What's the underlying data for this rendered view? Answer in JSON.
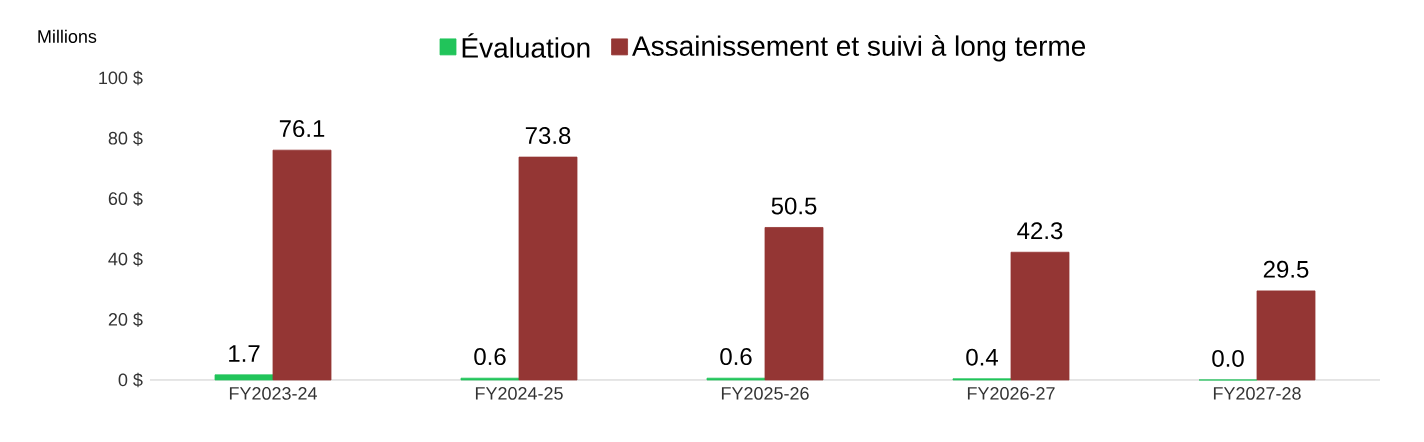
{
  "chart_data": {
    "type": "bar",
    "ylabel": "Millions",
    "categories": [
      "FY2023-24",
      "FY2024-25",
      "FY2025-26",
      "FY2026-27",
      "FY2027-28"
    ],
    "series": [
      {
        "name": "Évaluation",
        "color": "#21c45a",
        "values": [
          1.7,
          0.6,
          0.6,
          0.4,
          0.0
        ],
        "value_labels": [
          "1.7",
          "0.6",
          "0.6",
          "0.4",
          "0.0"
        ]
      },
      {
        "name": "Assainissement et suivi à long terme",
        "color": "#943634",
        "values": [
          76.1,
          73.8,
          50.5,
          42.3,
          29.5
        ],
        "value_labels": [
          "76.1",
          "73.8",
          "50.5",
          "42.3",
          "29.5"
        ]
      }
    ],
    "ylim": [
      0,
      100
    ],
    "yticks": [
      {
        "value": 0,
        "label": "0 $"
      },
      {
        "value": 20,
        "label": "20 $"
      },
      {
        "value": 40,
        "label": "40 $"
      },
      {
        "value": 60,
        "label": "60 $"
      },
      {
        "value": 80,
        "label": "80 $"
      },
      {
        "value": 100,
        "label": "100 $"
      }
    ],
    "legend": "top",
    "grid": false
  }
}
